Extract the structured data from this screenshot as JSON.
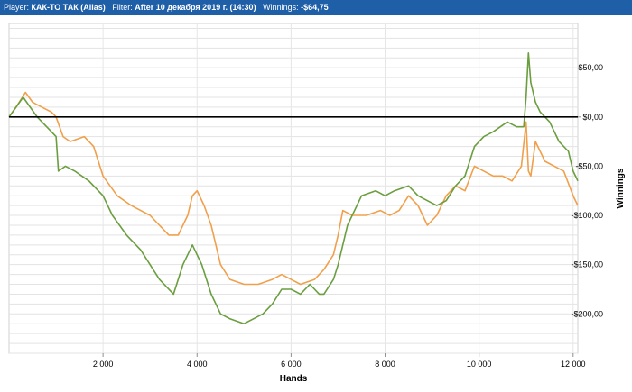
{
  "header": {
    "player_label": "Player:",
    "player_value": "КАК-ТО ТАК (Alias)",
    "filter_label": "Filter:",
    "filter_value": "After 10 декабря 2019 г. (14:30)",
    "winnings_label": "Winnings:",
    "winnings_value": "-$64,75"
  },
  "chart_data": {
    "type": "line",
    "xlabel": "Hands",
    "ylabel": "Winnings",
    "xlim": [
      0,
      12100
    ],
    "ylim": [
      -240,
      95
    ],
    "x_ticks": [
      {
        "value": 2000,
        "label": "2 000"
      },
      {
        "value": 4000,
        "label": "4 000"
      },
      {
        "value": 6000,
        "label": "6 000"
      },
      {
        "value": 8000,
        "label": "8 000"
      },
      {
        "value": 10000,
        "label": "10 000"
      },
      {
        "value": 12000,
        "label": "12 000"
      }
    ],
    "y_ticks": [
      {
        "value": 50,
        "label": "$50,00"
      },
      {
        "value": 0,
        "label": "$0,00"
      },
      {
        "value": -50,
        "label": "-$50,00"
      },
      {
        "value": -100,
        "label": "-$100,00"
      },
      {
        "value": -150,
        "label": "-$150,00"
      },
      {
        "value": -200,
        "label": "-$200,00"
      }
    ],
    "grid": true,
    "zero_line": true,
    "series": [
      {
        "color": "#f0a04b",
        "x": [
          0,
          150,
          350,
          500,
          700,
          900,
          1000,
          1150,
          1300,
          1600,
          1800,
          2000,
          2300,
          2600,
          2800,
          3000,
          3200,
          3400,
          3600,
          3800,
          3900,
          4000,
          4150,
          4300,
          4500,
          4700,
          5000,
          5300,
          5600,
          5800,
          6000,
          6200,
          6500,
          6700,
          6900,
          7000,
          7100,
          7300,
          7600,
          7900,
          8100,
          8300,
          8500,
          8700,
          8900,
          9100,
          9300,
          9500,
          9700,
          9900,
          10100,
          10300,
          10500,
          10700,
          10900,
          11000,
          11050,
          11100,
          11200,
          11400,
          11600,
          11800,
          12000,
          12100
        ],
        "values": [
          0,
          10,
          25,
          15,
          10,
          5,
          0,
          -20,
          -25,
          -20,
          -30,
          -60,
          -80,
          -90,
          -95,
          -100,
          -110,
          -120,
          -120,
          -100,
          -80,
          -75,
          -90,
          -110,
          -150,
          -165,
          -170,
          -170,
          -165,
          -160,
          -165,
          -170,
          -165,
          -155,
          -140,
          -120,
          -95,
          -100,
          -100,
          -95,
          -100,
          -95,
          -80,
          -90,
          -110,
          -100,
          -80,
          -70,
          -75,
          -50,
          -55,
          -60,
          -60,
          -65,
          -50,
          -5,
          -55,
          -60,
          -25,
          -45,
          -50,
          -55,
          -80,
          -90
        ]
      },
      {
        "color": "#6a9e3f",
        "x": [
          0,
          150,
          300,
          450,
          600,
          800,
          1000,
          1050,
          1200,
          1400,
          1700,
          2000,
          2200,
          2500,
          2800,
          3000,
          3200,
          3500,
          3700,
          3900,
          4100,
          4300,
          4500,
          4700,
          5000,
          5200,
          5400,
          5600,
          5800,
          6000,
          6200,
          6400,
          6600,
          6700,
          6900,
          7000,
          7200,
          7500,
          7800,
          8000,
          8200,
          8500,
          8700,
          8900,
          9100,
          9300,
          9500,
          9700,
          9900,
          10100,
          10300,
          10600,
          10800,
          10950,
          11000,
          11050,
          11100,
          11200,
          11300,
          11500,
          11700,
          11900,
          12000,
          12100
        ],
        "values": [
          0,
          10,
          20,
          10,
          0,
          -10,
          -20,
          -55,
          -50,
          -55,
          -65,
          -80,
          -100,
          -120,
          -135,
          -150,
          -165,
          -180,
          -150,
          -130,
          -150,
          -180,
          -200,
          -205,
          -210,
          -205,
          -200,
          -190,
          -175,
          -175,
          -180,
          -170,
          -180,
          -180,
          -165,
          -150,
          -110,
          -80,
          -75,
          -80,
          -75,
          -70,
          -80,
          -85,
          -90,
          -85,
          -70,
          -60,
          -30,
          -20,
          -15,
          -5,
          -10,
          -10,
          20,
          65,
          35,
          15,
          5,
          -5,
          -25,
          -35,
          -55,
          -65
        ]
      }
    ]
  }
}
